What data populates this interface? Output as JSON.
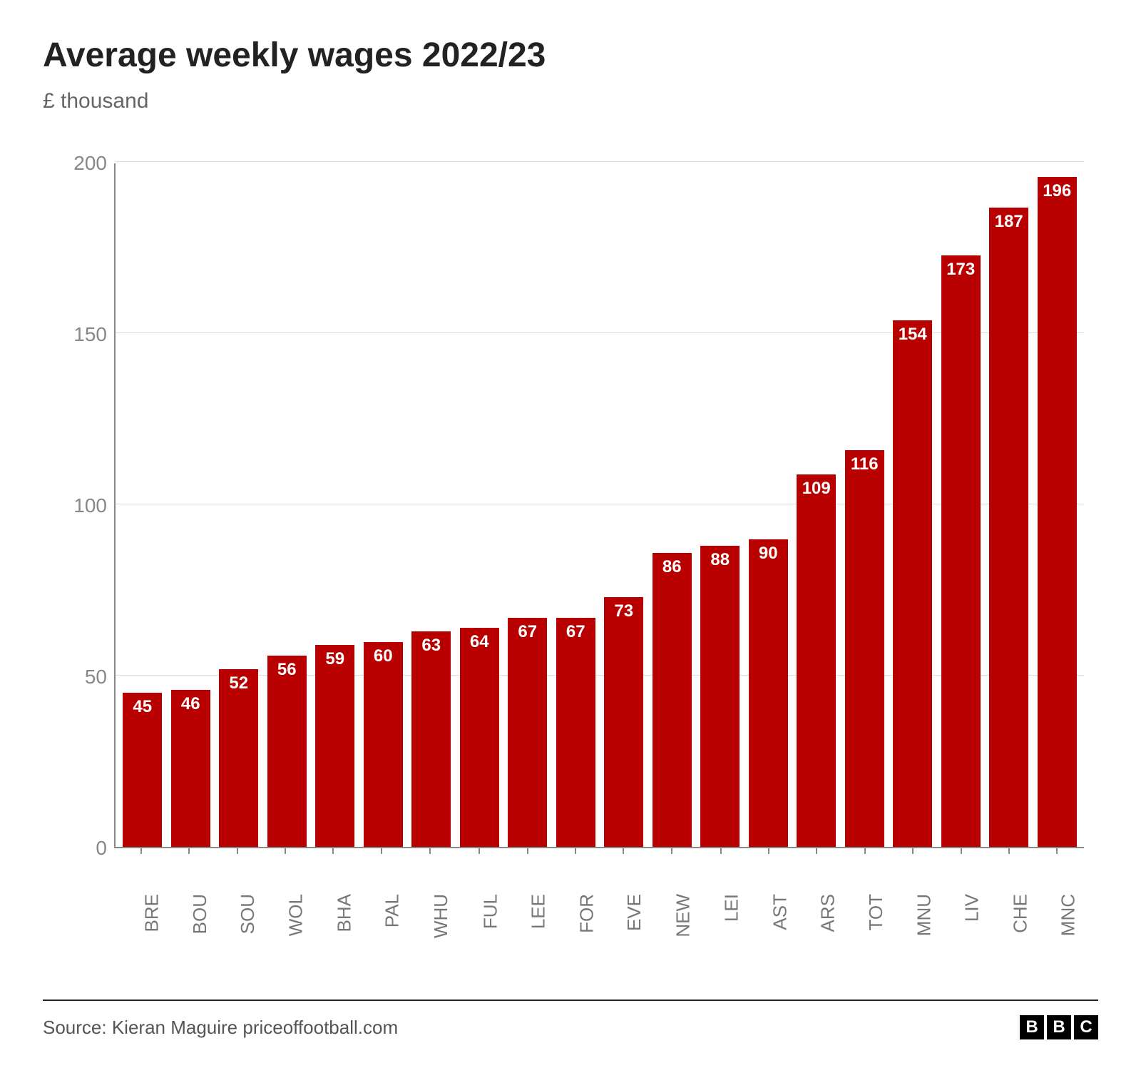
{
  "title": "Average weekly wages 2022/23",
  "subtitle": "£ thousand",
  "chart": {
    "type": "bar",
    "bar_color": "#b80000",
    "value_label_color": "#ffffff",
    "value_label_fontsize": 24,
    "value_label_fontweight": 900,
    "background_color": "#ffffff",
    "grid_color": "#dddddd",
    "axis_color": "#888888",
    "xlabel_color": "#777777",
    "xlabel_fontsize": 26,
    "ylabel_color": "#888888",
    "ylabel_fontsize": 28,
    "title_fontsize": 48,
    "subtitle_fontsize": 30,
    "ylim": [
      0,
      200
    ],
    "ytick_step": 50,
    "yticks": [
      0,
      50,
      100,
      150,
      200
    ],
    "bar_width_ratio": 0.92,
    "categories": [
      "BRE",
      "BOU",
      "SOU",
      "WOL",
      "BHA",
      "PAL",
      "WHU",
      "FUL",
      "LEE",
      "FOR",
      "EVE",
      "NEW",
      "LEI",
      "AST",
      "ARS",
      "TOT",
      "MNU",
      "LIV",
      "CHE",
      "MNC"
    ],
    "values": [
      45,
      46,
      52,
      56,
      59,
      60,
      63,
      64,
      67,
      67,
      73,
      86,
      88,
      90,
      109,
      116,
      154,
      173,
      187,
      196
    ]
  },
  "footer": {
    "source": "Source: Kieran Maguire priceoffootball.com",
    "logo_letters": [
      "B",
      "B",
      "C"
    ]
  }
}
